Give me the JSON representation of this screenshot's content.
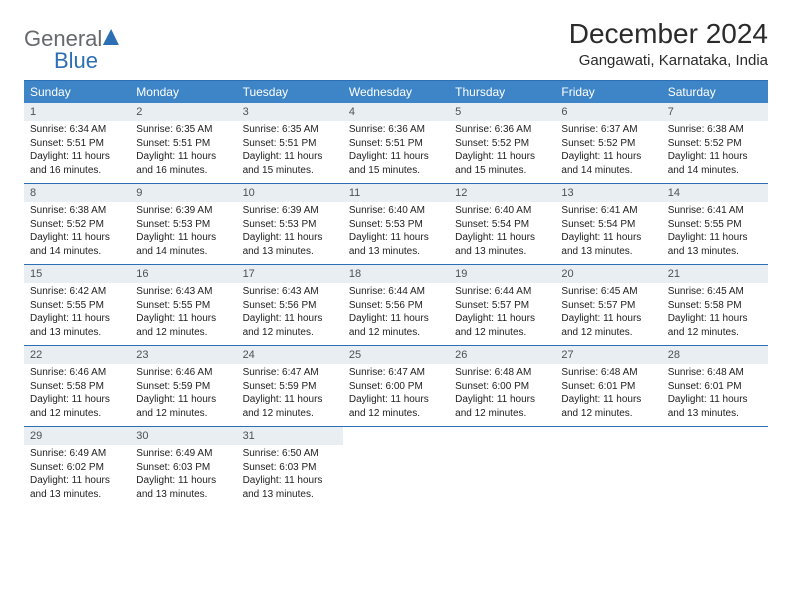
{
  "logo": {
    "part1": "General",
    "part2": "Blue"
  },
  "title": "December 2024",
  "subtitle": "Gangawati, Karnataka, India",
  "colors": {
    "header_bg": "#3d85c6",
    "header_text": "#ffffff",
    "daynum_bg": "#e9eef2",
    "rule": "#2d6fb5",
    "logo_gray": "#666a6e"
  },
  "day_labels": [
    "Sunday",
    "Monday",
    "Tuesday",
    "Wednesday",
    "Thursday",
    "Friday",
    "Saturday"
  ],
  "weeks": [
    [
      {
        "n": "1",
        "sr": "6:34 AM",
        "ss": "5:51 PM",
        "dl": "11 hours and 16 minutes."
      },
      {
        "n": "2",
        "sr": "6:35 AM",
        "ss": "5:51 PM",
        "dl": "11 hours and 16 minutes."
      },
      {
        "n": "3",
        "sr": "6:35 AM",
        "ss": "5:51 PM",
        "dl": "11 hours and 15 minutes."
      },
      {
        "n": "4",
        "sr": "6:36 AM",
        "ss": "5:51 PM",
        "dl": "11 hours and 15 minutes."
      },
      {
        "n": "5",
        "sr": "6:36 AM",
        "ss": "5:52 PM",
        "dl": "11 hours and 15 minutes."
      },
      {
        "n": "6",
        "sr": "6:37 AM",
        "ss": "5:52 PM",
        "dl": "11 hours and 14 minutes."
      },
      {
        "n": "7",
        "sr": "6:38 AM",
        "ss": "5:52 PM",
        "dl": "11 hours and 14 minutes."
      }
    ],
    [
      {
        "n": "8",
        "sr": "6:38 AM",
        "ss": "5:52 PM",
        "dl": "11 hours and 14 minutes."
      },
      {
        "n": "9",
        "sr": "6:39 AM",
        "ss": "5:53 PM",
        "dl": "11 hours and 14 minutes."
      },
      {
        "n": "10",
        "sr": "6:39 AM",
        "ss": "5:53 PM",
        "dl": "11 hours and 13 minutes."
      },
      {
        "n": "11",
        "sr": "6:40 AM",
        "ss": "5:53 PM",
        "dl": "11 hours and 13 minutes."
      },
      {
        "n": "12",
        "sr": "6:40 AM",
        "ss": "5:54 PM",
        "dl": "11 hours and 13 minutes."
      },
      {
        "n": "13",
        "sr": "6:41 AM",
        "ss": "5:54 PM",
        "dl": "11 hours and 13 minutes."
      },
      {
        "n": "14",
        "sr": "6:41 AM",
        "ss": "5:55 PM",
        "dl": "11 hours and 13 minutes."
      }
    ],
    [
      {
        "n": "15",
        "sr": "6:42 AM",
        "ss": "5:55 PM",
        "dl": "11 hours and 13 minutes."
      },
      {
        "n": "16",
        "sr": "6:43 AM",
        "ss": "5:55 PM",
        "dl": "11 hours and 12 minutes."
      },
      {
        "n": "17",
        "sr": "6:43 AM",
        "ss": "5:56 PM",
        "dl": "11 hours and 12 minutes."
      },
      {
        "n": "18",
        "sr": "6:44 AM",
        "ss": "5:56 PM",
        "dl": "11 hours and 12 minutes."
      },
      {
        "n": "19",
        "sr": "6:44 AM",
        "ss": "5:57 PM",
        "dl": "11 hours and 12 minutes."
      },
      {
        "n": "20",
        "sr": "6:45 AM",
        "ss": "5:57 PM",
        "dl": "11 hours and 12 minutes."
      },
      {
        "n": "21",
        "sr": "6:45 AM",
        "ss": "5:58 PM",
        "dl": "11 hours and 12 minutes."
      }
    ],
    [
      {
        "n": "22",
        "sr": "6:46 AM",
        "ss": "5:58 PM",
        "dl": "11 hours and 12 minutes."
      },
      {
        "n": "23",
        "sr": "6:46 AM",
        "ss": "5:59 PM",
        "dl": "11 hours and 12 minutes."
      },
      {
        "n": "24",
        "sr": "6:47 AM",
        "ss": "5:59 PM",
        "dl": "11 hours and 12 minutes."
      },
      {
        "n": "25",
        "sr": "6:47 AM",
        "ss": "6:00 PM",
        "dl": "11 hours and 12 minutes."
      },
      {
        "n": "26",
        "sr": "6:48 AM",
        "ss": "6:00 PM",
        "dl": "11 hours and 12 minutes."
      },
      {
        "n": "27",
        "sr": "6:48 AM",
        "ss": "6:01 PM",
        "dl": "11 hours and 12 minutes."
      },
      {
        "n": "28",
        "sr": "6:48 AM",
        "ss": "6:01 PM",
        "dl": "11 hours and 13 minutes."
      }
    ],
    [
      {
        "n": "29",
        "sr": "6:49 AM",
        "ss": "6:02 PM",
        "dl": "11 hours and 13 minutes."
      },
      {
        "n": "30",
        "sr": "6:49 AM",
        "ss": "6:03 PM",
        "dl": "11 hours and 13 minutes."
      },
      {
        "n": "31",
        "sr": "6:50 AM",
        "ss": "6:03 PM",
        "dl": "11 hours and 13 minutes."
      },
      null,
      null,
      null,
      null
    ]
  ],
  "labels": {
    "sunrise": "Sunrise:",
    "sunset": "Sunset:",
    "daylight": "Daylight:"
  }
}
